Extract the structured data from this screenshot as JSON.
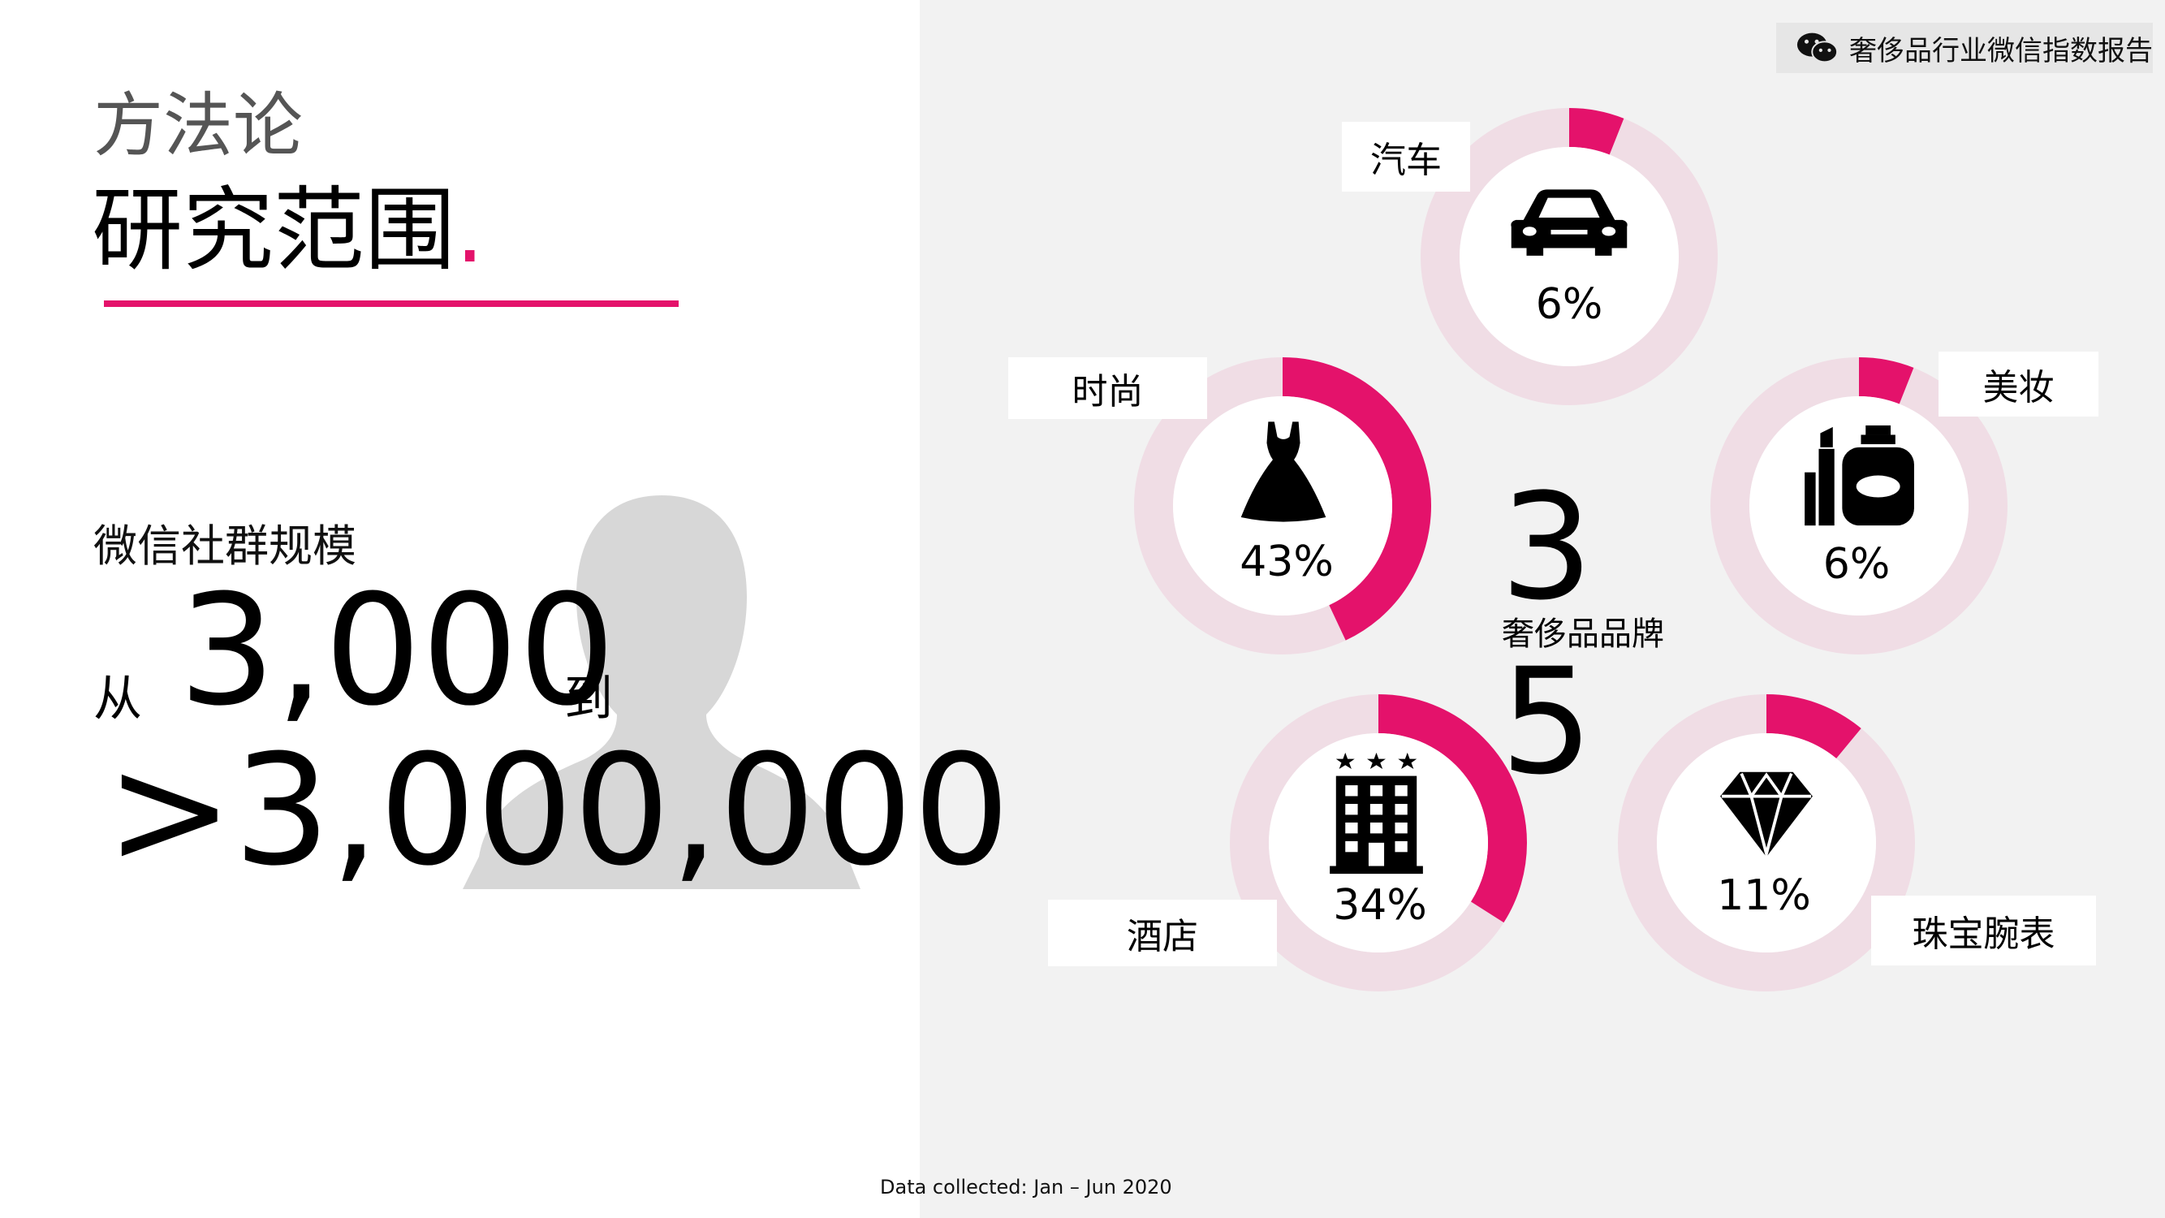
{
  "header": {
    "report_title": "奢侈品行业微信指数报告"
  },
  "title": {
    "kicker": "方法论",
    "headline": "研究范围",
    "dot": "."
  },
  "community": {
    "label": "微信社群规模",
    "from_word": "从",
    "from_value": "3,000",
    "to_word": "到",
    "to_value": ">3,000,000"
  },
  "brands": {
    "top_number": "3",
    "label": "奢侈品品牌",
    "bottom_number": "5"
  },
  "categories": [
    {
      "label": "汽车",
      "percent": 6,
      "percent_text": "6%",
      "icon": "car-icon"
    },
    {
      "label": "时尚",
      "percent": 43,
      "percent_text": "43%",
      "icon": "dress-icon"
    },
    {
      "label": "美妆",
      "percent": 6,
      "percent_text": "6%",
      "icon": "cosmetics-icon"
    },
    {
      "label": "酒店",
      "percent": 34,
      "percent_text": "34%",
      "icon": "hotel-icon"
    },
    {
      "label": "珠宝腕表",
      "percent": 11,
      "percent_text": "11%",
      "icon": "diamond-icon"
    }
  ],
  "colors": {
    "accent": "#e4126b",
    "ring_track": "#f0dde5",
    "panel_bg": "#f2f2f2"
  },
  "footer": {
    "note": "Data collected: Jan – Jun 2020"
  }
}
